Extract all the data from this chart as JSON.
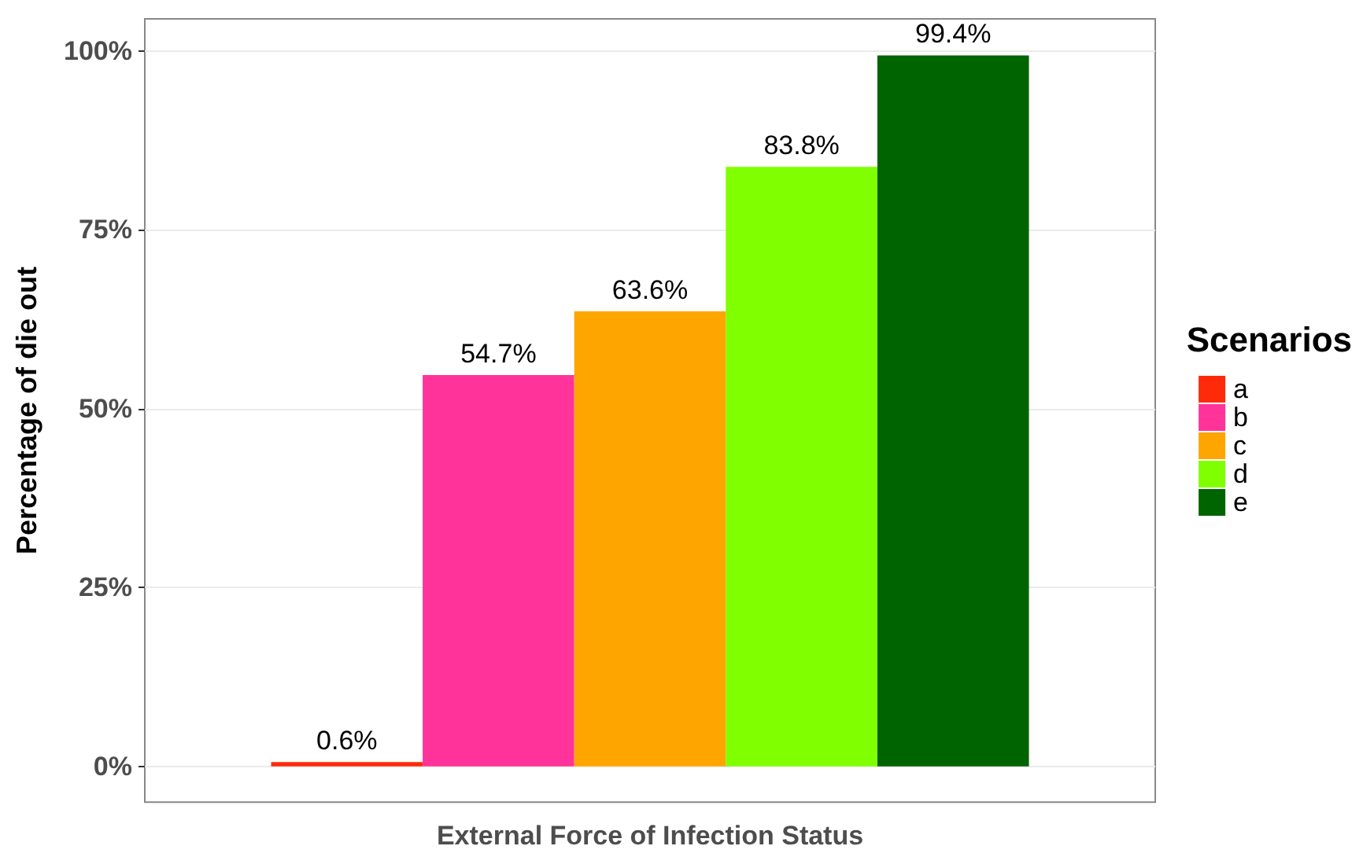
{
  "chart_data": {
    "type": "bar",
    "xlabel": "External Force of Infection Status",
    "ylabel": "Percentage of die out",
    "legend_title": "Scenarios",
    "categories": [
      null
    ],
    "series": [
      {
        "name": "a",
        "color": "#ff2a0a",
        "values": [
          0.6
        ],
        "value_labels": [
          "0.6%"
        ]
      },
      {
        "name": "b",
        "color": "#ff3399",
        "values": [
          54.7
        ],
        "value_labels": [
          "54.7%"
        ]
      },
      {
        "name": "c",
        "color": "#ffa500",
        "values": [
          63.6
        ],
        "value_labels": [
          "63.6%"
        ]
      },
      {
        "name": "d",
        "color": "#80ff00",
        "values": [
          83.8
        ],
        "value_labels": [
          "83.8%"
        ]
      },
      {
        "name": "e",
        "color": "#006400",
        "values": [
          99.4
        ],
        "value_labels": [
          "99.4%"
        ]
      }
    ],
    "ylim": [
      -5,
      104.5
    ],
    "yticks": [
      {
        "value": 0,
        "label": "0%"
      },
      {
        "value": 25,
        "label": "25%"
      },
      {
        "value": 50,
        "label": "50%"
      },
      {
        "value": 75,
        "label": "75%"
      },
      {
        "value": 100,
        "label": "100%"
      }
    ],
    "grid": "y",
    "legend": "right"
  }
}
